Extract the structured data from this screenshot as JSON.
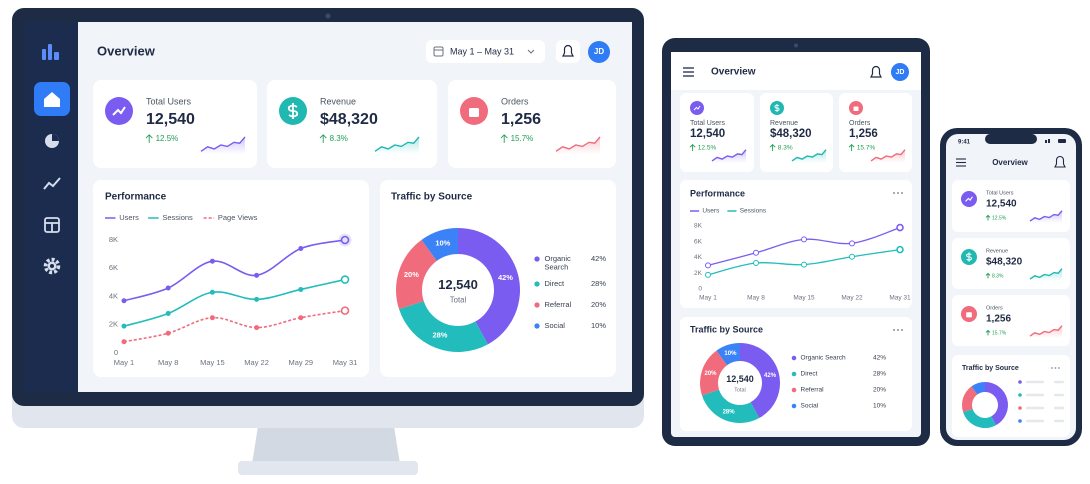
{
  "header": {
    "title": "Overview",
    "date_range": "May 1 – May 31",
    "initials": "JD",
    "time": "9:41"
  },
  "stats": [
    {
      "label": "Total Users",
      "value": "12,540",
      "change": "12.5%"
    },
    {
      "label": "Revenue",
      "value": "$48,320",
      "change": "8.3%"
    },
    {
      "label": "Orders",
      "value": "1,256",
      "change": "15.7%"
    }
  ],
  "chart_data": [
    {
      "type": "line",
      "title": "Performance",
      "categories": [
        "May 1",
        "May 8",
        "May 15",
        "May 22",
        "May 29",
        "May 31"
      ],
      "series": [
        {
          "name": "Users",
          "color": "#7b5cf0",
          "line_style": "solid",
          "values": [
            3700,
            4600,
            6500,
            5500,
            7400,
            8000
          ]
        },
        {
          "name": "Sessions",
          "color": "#22bcbc",
          "line_style": "solid",
          "values": [
            1900,
            2800,
            4300,
            3800,
            4500,
            5200
          ]
        },
        {
          "name": "Page Views",
          "color": "#f06b7c",
          "line_style": "dashed",
          "values": [
            800,
            1400,
            2500,
            1800,
            2500,
            3000
          ]
        }
      ],
      "ylim": [
        0,
        8000
      ],
      "yticks": [
        0,
        {
          "value": 2000,
          "label": "2K"
        },
        {
          "value": 4000,
          "label": "4K"
        },
        {
          "value": 6000,
          "label": "6K"
        },
        {
          "value": 8000,
          "label": "8K"
        }
      ],
      "grid": false,
      "legend": "top-left"
    },
    {
      "type": "donut",
      "title": "Traffic by Source",
      "center_value": "12,540",
      "center_label": "Total",
      "categories": [
        "Organic Search",
        "Direct",
        "Referral",
        "Social"
      ],
      "values": [
        42,
        28,
        20,
        10
      ],
      "value_labels": [
        "42%",
        "28%",
        "20%",
        "10%"
      ],
      "colors": [
        "#7b5cf0",
        "#22bcbc",
        "#f06b7c",
        "#3b82f6"
      ],
      "legend": "right"
    },
    {
      "type": "line",
      "categories": [
        "May 1",
        "May 8",
        "May 15",
        "May 22",
        "May 31"
      ],
      "series": [
        {
          "name": "Users",
          "color": "#7b5cf0",
          "line_style": "solid",
          "values": [
            3000,
            4600,
            6300,
            5800,
            7800
          ]
        },
        {
          "name": "Sessions",
          "color": "#22bcbc",
          "line_style": "solid",
          "values": [
            1800,
            3300,
            3100,
            4100,
            5000
          ]
        }
      ],
      "ylim": [
        0,
        8000
      ],
      "yticks": [
        0,
        {
          "value": 2000,
          "label": "2K"
        },
        {
          "value": 4000,
          "label": "4K"
        },
        {
          "value": 6000,
          "label": "6K"
        },
        {
          "value": 8000,
          "label": "8K"
        }
      ],
      "grid": false,
      "legend": "top-left"
    }
  ]
}
